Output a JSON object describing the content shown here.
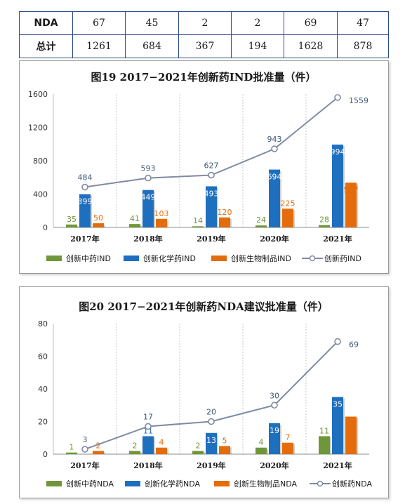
{
  "table": {
    "rows": [
      {
        "label": "NDA",
        "values": [
          "67",
          "45",
          "2",
          "2",
          "69",
          "47"
        ]
      },
      {
        "label": "总计",
        "values": [
          "1261",
          "684",
          "367",
          "194",
          "1628",
          "878"
        ]
      }
    ]
  },
  "chart_data": [
    {
      "type": "bar",
      "title": "图19  2017−2021年创新药IND批准量（件）",
      "categories": [
        "2017年",
        "2018年",
        "2019年",
        "2020年",
        "2021年"
      ],
      "ylim": [
        0,
        1600
      ],
      "yticks": [
        0,
        400,
        800,
        1200,
        1600
      ],
      "series": [
        {
          "name": "创新中药IND",
          "kind": "bar",
          "color": "#70963a",
          "values": [
            35,
            41,
            14,
            24,
            28
          ]
        },
        {
          "name": "创新化学药IND",
          "kind": "bar",
          "color": "#1f6fbf",
          "values": [
            399,
            449,
            493,
            694,
            994
          ]
        },
        {
          "name": "创新生物制品IND",
          "kind": "bar",
          "color": "#e46c0a",
          "values": [
            50,
            103,
            120,
            225,
            537
          ]
        },
        {
          "name": "创新药IND",
          "kind": "line",
          "color": "#7f8ba3",
          "values": [
            484,
            593,
            627,
            943,
            1559
          ]
        }
      ],
      "legend": "bottom"
    },
    {
      "type": "bar",
      "title": "图20  2017−2021年创新药NDA建议批准量（件）",
      "categories": [
        "2017年",
        "2018年",
        "2019年",
        "2020年",
        "2021年"
      ],
      "ylim": [
        0,
        80
      ],
      "yticks": [
        0,
        20,
        40,
        60,
        80
      ],
      "series": [
        {
          "name": "创新中药NDA",
          "kind": "bar",
          "color": "#70963a",
          "values": [
            1,
            2,
            2,
            4,
            11
          ]
        },
        {
          "name": "创新化学药NDA",
          "kind": "bar",
          "color": "#1f6fbf",
          "values": [
            0,
            11,
            13,
            19,
            35
          ]
        },
        {
          "name": "创新生物制品NDA",
          "kind": "bar",
          "color": "#e46c0a",
          "values": [
            2,
            4,
            5,
            7,
            23
          ]
        },
        {
          "name": "创新药NDA",
          "kind": "line",
          "color": "#7f8ba3",
          "values": [
            3,
            17,
            20,
            30,
            69
          ]
        }
      ],
      "legend": "bottom"
    }
  ]
}
